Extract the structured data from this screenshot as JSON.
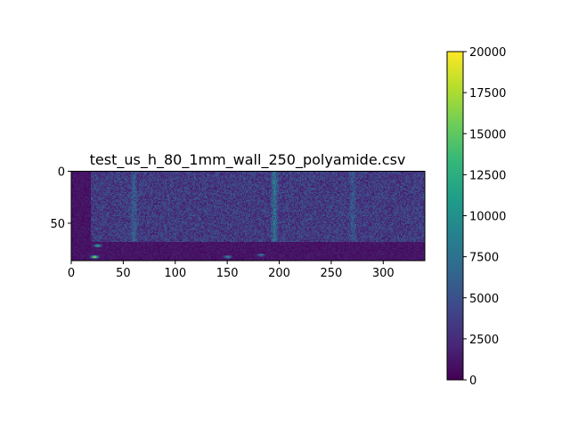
{
  "chart_data": {
    "type": "heatmap",
    "title": "test_us_h_80_1mm_wall_250_polyamide.csv",
    "xlabel": "",
    "ylabel": "",
    "n_cols": 340,
    "n_rows": 86,
    "xlim": [
      0,
      340
    ],
    "ylim": [
      86,
      0
    ],
    "x_ticks": [
      0,
      50,
      100,
      150,
      200,
      250,
      300
    ],
    "y_ticks": [
      0,
      50
    ],
    "colormap": "viridis",
    "colorbar": {
      "vmin": 0,
      "vmax": 20000,
      "ticks": [
        0,
        2500,
        5000,
        7500,
        10000,
        12500,
        15000,
        17500,
        20000
      ]
    },
    "colorbar_placement": "right",
    "regions": {
      "dead_zone_cols": [
        0,
        19
      ],
      "noise_rows": [
        0,
        68
      ],
      "noise_level": 3500,
      "lower_band_rows": [
        68,
        86
      ],
      "lower_band_level": 1200,
      "vertical_streaks": [
        {
          "col": 60,
          "level": 6500
        },
        {
          "col": 195,
          "level": 8500
        },
        {
          "col": 270,
          "level": 6000
        }
      ],
      "bright_spots": [
        {
          "col": 22,
          "row": 82,
          "level": 19000
        },
        {
          "col": 25,
          "row": 71,
          "level": 13000
        },
        {
          "col": 150,
          "row": 82,
          "level": 11000
        },
        {
          "col": 182,
          "row": 80,
          "level": 9000
        }
      ]
    }
  }
}
